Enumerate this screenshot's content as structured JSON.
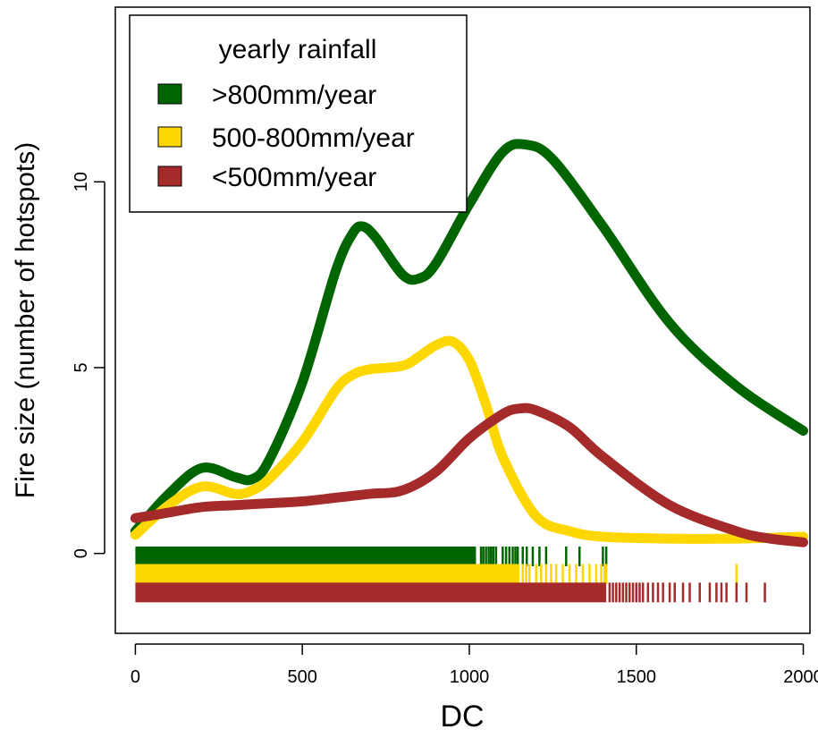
{
  "chart_data": {
    "type": "line",
    "xlabel": "DC",
    "ylabel": "Fire size (number of hotspots)",
    "xlim": [
      -60,
      2020
    ],
    "ylim": [
      -2.15,
      14.7
    ],
    "x_ticks": [
      "0",
      "500",
      "1000",
      "1500",
      "2000"
    ],
    "y_ticks": [
      "0",
      "5",
      "10"
    ],
    "x_tick_values": [
      0,
      500,
      1000,
      1500,
      2000
    ],
    "y_tick_values": [
      0,
      5,
      10
    ],
    "grid": false,
    "legend": {
      "title": "yearly rainfall",
      "placement": "top-left",
      "entries": [
        ">800mm/year",
        "500-800mm/year",
        "<500mm/year"
      ]
    },
    "series": [
      {
        "name": ">800mm/year",
        "color": "#006400",
        "x": [
          0,
          100,
          200,
          300,
          350,
          400,
          500,
          600,
          650,
          680,
          720,
          800,
          850,
          900,
          1000,
          1100,
          1170,
          1250,
          1400,
          1600,
          1800,
          2000
        ],
        "y": [
          0.6,
          1.6,
          2.3,
          2.05,
          2.0,
          2.5,
          4.6,
          7.6,
          8.6,
          8.8,
          8.5,
          7.5,
          7.4,
          7.8,
          9.4,
          10.8,
          11.0,
          10.6,
          8.8,
          6.2,
          4.5,
          3.3
        ]
      },
      {
        "name": "500-800mm/year",
        "color": "#FFD700",
        "x": [
          0,
          100,
          200,
          300,
          350,
          400,
          500,
          600,
          650,
          700,
          800,
          850,
          900,
          950,
          1000,
          1050,
          1100,
          1200,
          1300,
          1400,
          1600,
          1800,
          2000
        ],
        "y": [
          0.5,
          1.3,
          1.8,
          1.6,
          1.7,
          2.0,
          3.0,
          4.4,
          4.8,
          4.95,
          5.05,
          5.3,
          5.6,
          5.7,
          5.2,
          4.0,
          2.6,
          1.0,
          0.6,
          0.45,
          0.4,
          0.4,
          0.45
        ]
      },
      {
        "name": "<500mm/year",
        "color": "#A52A2A",
        "x": [
          0,
          100,
          200,
          300,
          400,
          500,
          600,
          700,
          800,
          900,
          1000,
          1100,
          1150,
          1200,
          1300,
          1400,
          1600,
          1800,
          1900,
          2000
        ],
        "y": [
          0.95,
          1.1,
          1.25,
          1.3,
          1.35,
          1.4,
          1.5,
          1.6,
          1.7,
          2.2,
          3.1,
          3.75,
          3.9,
          3.85,
          3.4,
          2.6,
          1.3,
          0.6,
          0.4,
          0.3
        ]
      }
    ],
    "rugs": [
      {
        "name": ">800mm/year",
        "color": "#006400",
        "y": -0.08,
        "dense_range": [
          0,
          1020
        ],
        "ticks": [
          1035,
          1042,
          1050,
          1058,
          1065,
          1072,
          1080,
          1100,
          1110,
          1120,
          1130,
          1138,
          1145,
          1160,
          1172,
          1190,
          1210,
          1230,
          1290,
          1330,
          1400,
          1410
        ]
      },
      {
        "name": "500-800mm/year",
        "color": "#FFD700",
        "y": -0.55,
        "dense_range": [
          0,
          1150
        ],
        "ticks": [
          1160,
          1170,
          1180,
          1200,
          1215,
          1230,
          1245,
          1260,
          1280,
          1300,
          1320,
          1340,
          1360,
          1380,
          1395,
          1405,
          1410,
          1800
        ]
      },
      {
        "name": "<500mm/year",
        "color": "#A52A2A",
        "y": -1.05,
        "dense_range": [
          0,
          1410
        ],
        "ticks": [
          1420,
          1430,
          1440,
          1450,
          1460,
          1470,
          1480,
          1490,
          1500,
          1510,
          1520,
          1535,
          1550,
          1565,
          1580,
          1600,
          1615,
          1640,
          1660,
          1690,
          1720,
          1740,
          1755,
          1770,
          1800,
          1830,
          1885
        ]
      }
    ]
  }
}
